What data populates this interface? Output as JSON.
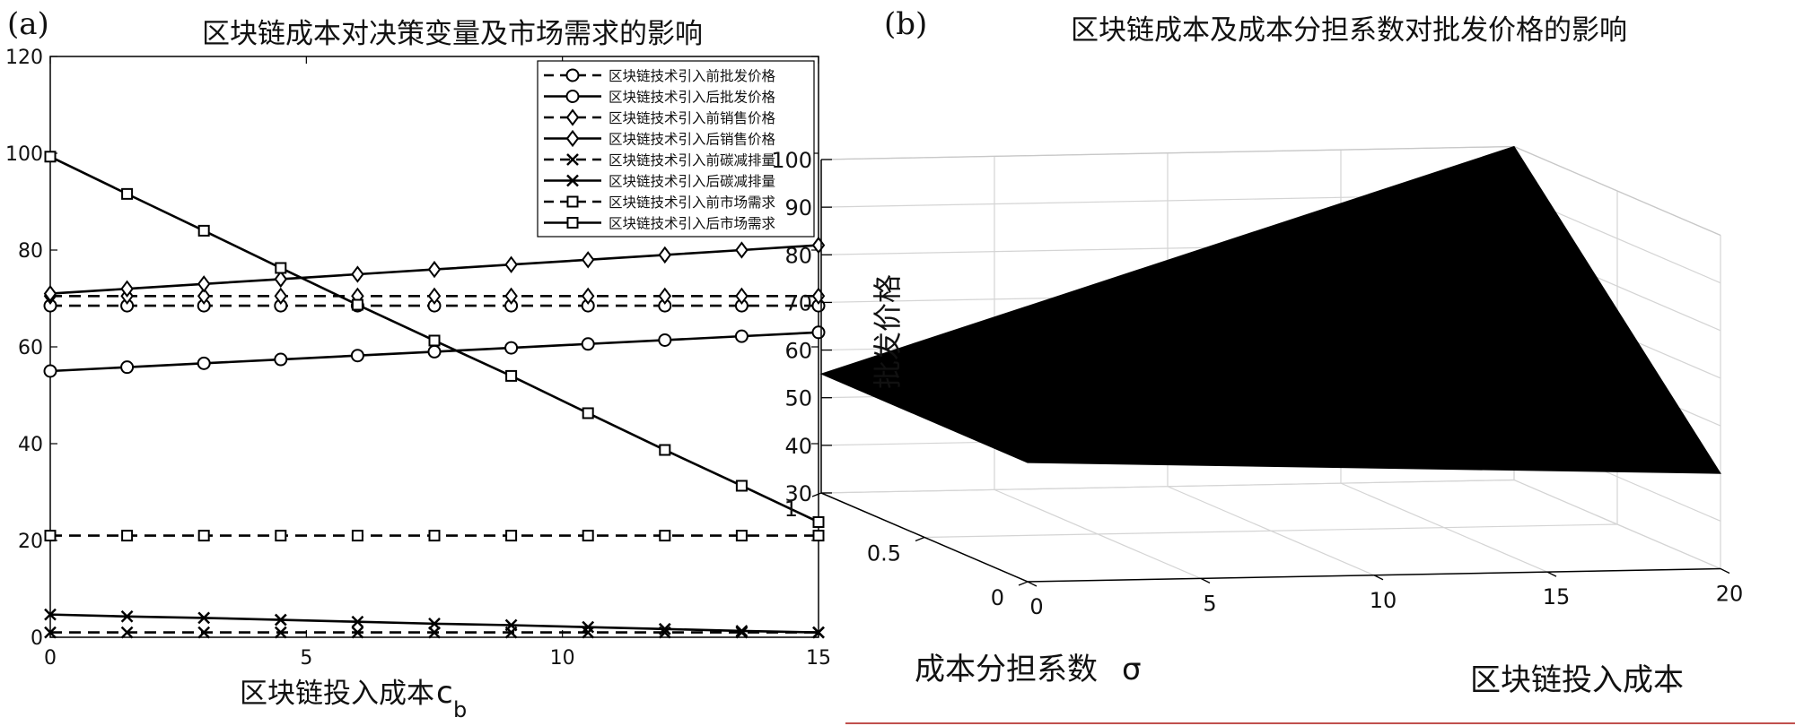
{
  "chart_data": [
    {
      "panel_label": "(a)",
      "type": "line",
      "title": "区块链成本对决策变量及市场需求的影响",
      "xlabel": "区块链投入成本",
      "xlabel_sub": "c",
      "xlabel_subscript": "b",
      "ylabel": "",
      "xlim": [
        0,
        15
      ],
      "ylim": [
        0,
        120
      ],
      "xticks": [
        0,
        5,
        10,
        15
      ],
      "yticks": [
        0,
        20,
        40,
        60,
        80,
        100,
        120
      ],
      "grid": false,
      "legend_position": "top-right",
      "x": [
        0,
        1.5,
        3,
        4.5,
        6,
        7.5,
        9,
        10.5,
        12,
        13.5,
        15
      ],
      "series": [
        {
          "name": "区块链技术引入前批发价格",
          "marker": "circle",
          "dash": true,
          "values": [
            68.5,
            68.5,
            68.5,
            68.5,
            68.5,
            68.5,
            68.5,
            68.5,
            68.5,
            68.5,
            68.5
          ]
        },
        {
          "name": "区块链技术引入后批发价格",
          "marker": "circle",
          "dash": false,
          "values": [
            55,
            55.8,
            56.6,
            57.4,
            58.2,
            59,
            59.8,
            60.6,
            61.4,
            62.2,
            63
          ]
        },
        {
          "name": "区块链技术引入前销售价格",
          "marker": "diamond",
          "dash": true,
          "values": [
            70.5,
            70.5,
            70.5,
            70.5,
            70.5,
            70.5,
            70.5,
            70.5,
            70.5,
            70.5,
            70.5
          ]
        },
        {
          "name": "区块链技术引入后销售价格",
          "marker": "diamond",
          "dash": false,
          "values": [
            71,
            72,
            73,
            74,
            75,
            76,
            77,
            78,
            79,
            80,
            81
          ]
        },
        {
          "name": "区块链技术引入前碳减排量",
          "marker": "x",
          "dash": true,
          "values": [
            1,
            1,
            1,
            1,
            1,
            1,
            1,
            1,
            1,
            1,
            1
          ]
        },
        {
          "name": "区块链技术引入后碳减排量",
          "marker": "x",
          "dash": false,
          "values": [
            4.7,
            4.3,
            4,
            3.6,
            3.2,
            2.8,
            2.5,
            2.1,
            1.7,
            1.3,
            1
          ]
        },
        {
          "name": "区块链技术引入前市场需求",
          "marker": "square",
          "dash": true,
          "values": [
            21,
            21,
            21,
            21,
            21,
            21,
            21,
            21,
            21,
            21,
            21
          ]
        },
        {
          "name": "区块链技术引入后市场需求",
          "marker": "square",
          "dash": false,
          "values": [
            99.3,
            91.6,
            84,
            76.3,
            68.7,
            61.3,
            54,
            46.3,
            38.7,
            31.3,
            23.8
          ]
        }
      ]
    },
    {
      "panel_label": "(b)",
      "type": "surface",
      "title": "区块链成本及成本分担系数对批发价格的影响",
      "xlabel": "区块链投入成本",
      "ylabel": "成本分担系数",
      "ylabel_symbol": "σ",
      "zlabel": "批发价格",
      "xlim": [
        0,
        20
      ],
      "ylim": [
        0,
        1
      ],
      "zlim": [
        30,
        100
      ],
      "xticks": [
        0,
        5,
        10,
        15,
        20
      ],
      "yticks": [
        0,
        0.5,
        1
      ],
      "zticks": [
        30,
        40,
        50,
        60,
        70,
        80,
        90,
        100
      ],
      "grid": true,
      "surface_color": "#000000",
      "corners": [
        {
          "x": 0,
          "y": 0,
          "z": 55
        },
        {
          "x": 20,
          "y": 0,
          "z": 50
        },
        {
          "x": 20,
          "y": 1,
          "z": 100
        },
        {
          "x": 0,
          "y": 1,
          "z": 55
        }
      ]
    }
  ]
}
